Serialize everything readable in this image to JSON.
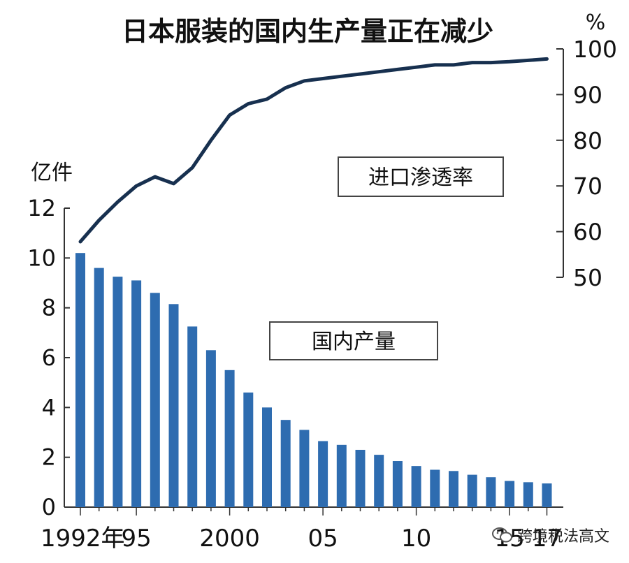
{
  "chart_data": {
    "type": "bar+line",
    "title": "日本服装的国内生产量正在减少",
    "left_axis": {
      "unit_label": "亿件",
      "ticks": [
        "0",
        "2",
        "4",
        "6",
        "8",
        "10",
        "12"
      ],
      "range": [
        0,
        12
      ]
    },
    "right_axis": {
      "unit_label": "%",
      "ticks": [
        "50",
        "60",
        "70",
        "80",
        "90",
        "100"
      ],
      "range": [
        50,
        100
      ]
    },
    "x_tick_labels": [
      "1992年",
      "95",
      "2000",
      "05",
      "10",
      "15",
      "17"
    ],
    "x_years": [
      1992,
      1993,
      1994,
      1995,
      1996,
      1997,
      1998,
      1999,
      2000,
      2001,
      2002,
      2003,
      2004,
      2005,
      2006,
      2007,
      2008,
      2009,
      2010,
      2011,
      2012,
      2013,
      2014,
      2015,
      2016,
      2017
    ],
    "series": [
      {
        "name": "国内产量",
        "type": "bar",
        "axis": "left",
        "color": "#2e6cb0",
        "values": [
          10.2,
          9.6,
          9.25,
          9.1,
          8.6,
          8.15,
          7.25,
          6.3,
          5.5,
          4.6,
          4.0,
          3.5,
          3.1,
          2.65,
          2.5,
          2.3,
          2.1,
          1.85,
          1.65,
          1.5,
          1.45,
          1.3,
          1.2,
          1.05,
          1.0,
          0.95
        ]
      },
      {
        "name": "进口渗透率",
        "type": "line",
        "axis": "right",
        "color": "#17304f",
        "values": [
          57.8,
          62.5,
          66.5,
          70.0,
          72.0,
          70.5,
          74.0,
          80.0,
          85.5,
          88.0,
          89.0,
          91.5,
          93.0,
          93.5,
          94.0,
          94.5,
          95.0,
          95.5,
          96.0,
          96.5,
          96.5,
          97.0,
          97.0,
          97.2,
          97.5,
          97.8
        ]
      }
    ]
  },
  "watermark": {
    "text": "跨境税法高文",
    "icon": "wechat-icon"
  }
}
